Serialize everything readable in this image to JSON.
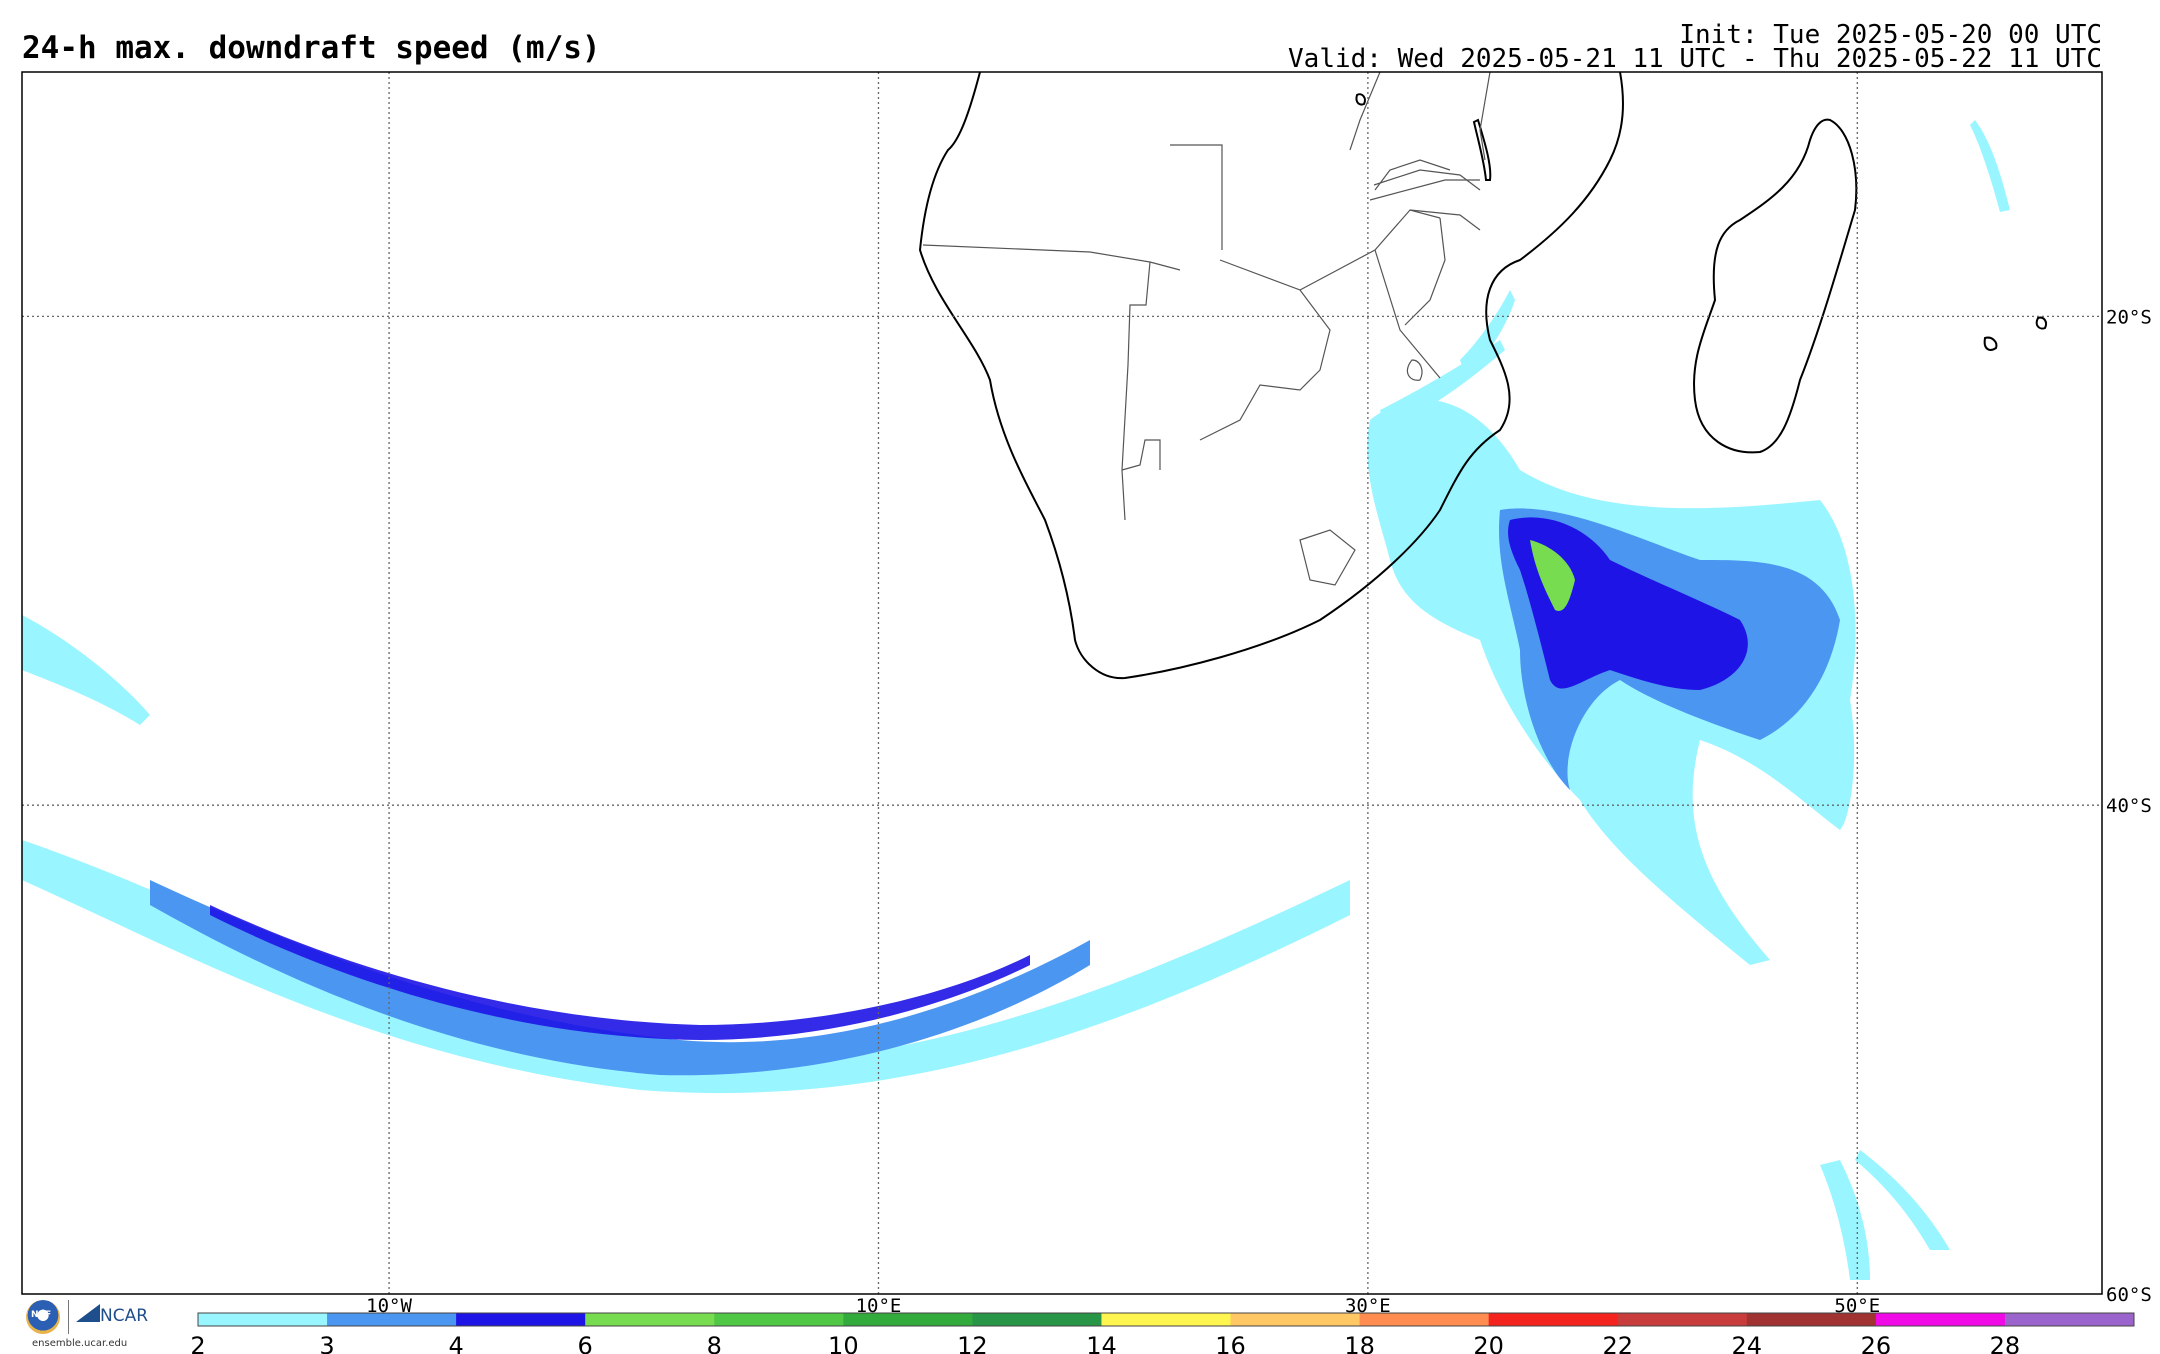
{
  "title": "24-h max. downdraft speed (m/s)",
  "init": "Init: Tue 2025-05-20 00 UTC",
  "valid": "Valid: Wed 2025-05-21 11 UTC - Thu 2025-05-22 11 UTC",
  "map": {
    "lon_range": [
      -25,
      60
    ],
    "lat_range": [
      -60,
      -10
    ],
    "lon_gridlines": [
      {
        "value": -10,
        "label": "10°W"
      },
      {
        "value": 10,
        "label": "10°E"
      },
      {
        "value": 30,
        "label": "30°E"
      },
      {
        "value": 50,
        "label": "50°E"
      }
    ],
    "lat_gridlines": [
      {
        "value": -20,
        "label": "20°S"
      },
      {
        "value": -40,
        "label": "40°S"
      },
      {
        "value": -60,
        "label": "60°S"
      }
    ],
    "coastline_color": "#000000",
    "border_color": "#555555"
  },
  "colorbar": {
    "labels": [
      "2",
      "3",
      "4",
      "6",
      "8",
      "10",
      "12",
      "14",
      "16",
      "18",
      "20",
      "22",
      "24",
      "26",
      "28"
    ],
    "colors": [
      "#99f5ff",
      "#4b96f0",
      "#1e14e6",
      "#78dc50",
      "#50c846",
      "#32aa3c",
      "#289646",
      "#fff550",
      "#ffc864",
      "#ff8c50",
      "#f5231e",
      "#c83c3c",
      "#a03232",
      "#f00ae6",
      "#9b64cd"
    ]
  },
  "logo": {
    "nsf": "NSF",
    "ncar": "NCAR",
    "url": "ensemble.ucar.edu"
  }
}
